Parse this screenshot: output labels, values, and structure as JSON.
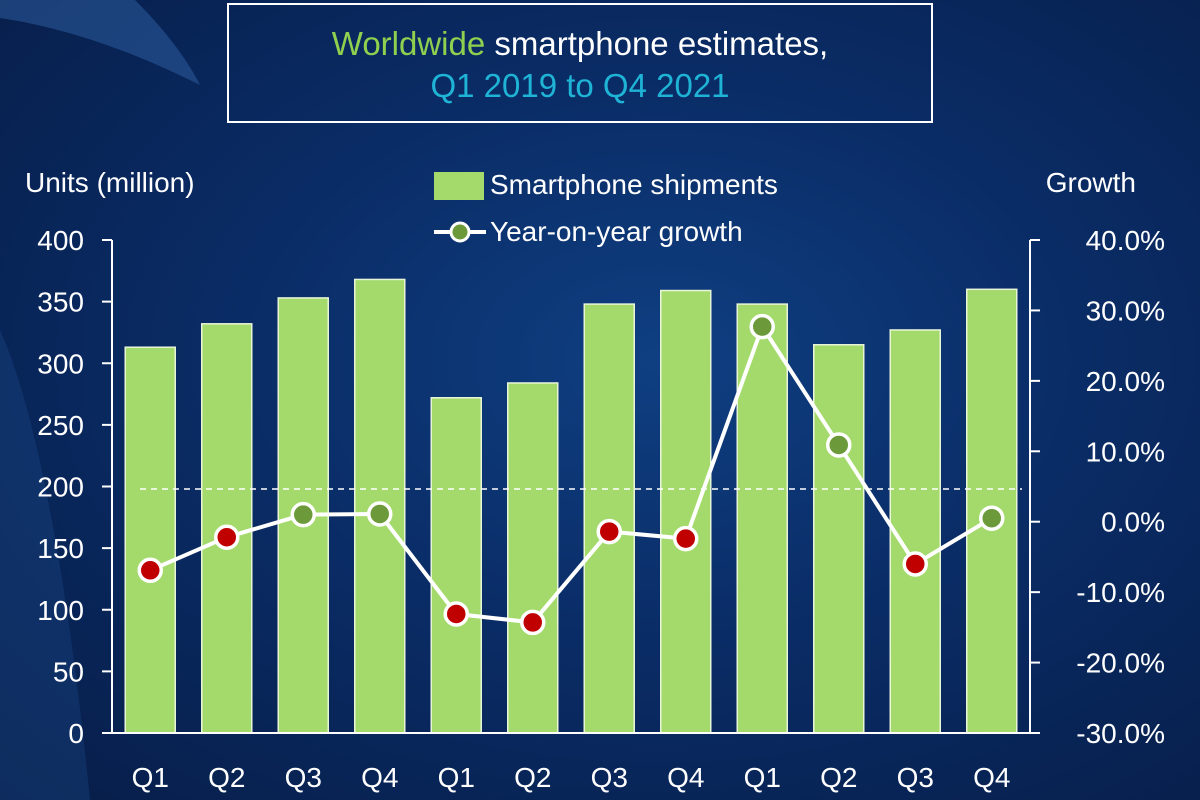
{
  "title": {
    "accent": "Worldwide",
    "main": "smartphone estimates,",
    "subtitle": "Q1 2019 to Q4 2021"
  },
  "colors": {
    "accent_green": "#8fd14f",
    "subtitle_teal": "#1fb4d6",
    "bar": "#a4da6c",
    "point_negative": "#c00000",
    "point_positive": "#6c9a3a",
    "line": "#ffffff"
  },
  "chart_data": {
    "type": "bar",
    "ylabel": "Units (million)",
    "y2label": "Growth",
    "categories": [
      "Q1",
      "Q2",
      "Q3",
      "Q4",
      "Q1",
      "Q2",
      "Q3",
      "Q4",
      "Q1",
      "Q2",
      "Q3",
      "Q4"
    ],
    "ylim": [
      0,
      400
    ],
    "y_ticks": [
      "0",
      "50",
      "100",
      "150",
      "200",
      "250",
      "300",
      "350",
      "400"
    ],
    "y2lim": [
      -0.3,
      0.4
    ],
    "y2_ticks": [
      "-30.0%",
      "-20.0%",
      "-10.0%",
      "0.0%",
      "10.0%",
      "20.0%",
      "30.0%",
      "40.0%"
    ],
    "series": [
      {
        "name": "Smartphone shipments",
        "type": "bar",
        "axis": "left",
        "values": [
          313,
          332,
          353,
          368,
          272,
          284,
          348,
          359,
          348,
          315,
          327,
          360
        ]
      },
      {
        "name": "Year-on-year growth",
        "type": "line",
        "axis": "right",
        "values": [
          -0.069,
          -0.022,
          0.01,
          0.011,
          -0.131,
          -0.143,
          -0.014,
          -0.024,
          0.277,
          0.109,
          -0.06,
          0.005
        ]
      }
    ],
    "reference_line": {
      "axis": "left",
      "value": 198,
      "style": "dashed"
    },
    "legend_position": "top-center",
    "grid": false
  }
}
